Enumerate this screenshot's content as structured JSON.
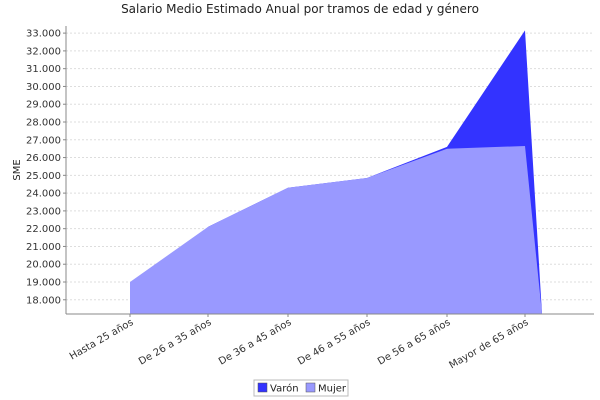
{
  "chart_data": {
    "type": "area",
    "title": "Salario Medio Estimado Anual por tramos de edad y género",
    "xlabel": "",
    "ylabel": "SME",
    "categories": [
      "Hasta 25 años",
      "De 26 a 35 años",
      "De 36 a 45 años",
      "De 46 a 55 años",
      "De 56 a 65 años",
      "Mayor de 65 años"
    ],
    "series": [
      {
        "name": "Varón",
        "color": "#3333ff",
        "values": [
          17200,
          22100,
          24300,
          24850,
          26600,
          33150
        ]
      },
      {
        "name": "Mujer",
        "color": "#9999ff",
        "values": [
          19000,
          22100,
          24300,
          24850,
          26500,
          26650
        ]
      }
    ],
    "ylim": [
      17200,
      33400
    ],
    "yticks": [
      "18.000",
      "19.000",
      "20.000",
      "21.000",
      "22.000",
      "23.000",
      "24.000",
      "25.000",
      "26.000",
      "27.000",
      "28.000",
      "29.000",
      "30.000",
      "31.000",
      "32.000",
      "33.000"
    ],
    "ytick_values": [
      18000,
      19000,
      20000,
      21000,
      22000,
      23000,
      24000,
      25000,
      26000,
      27000,
      28000,
      29000,
      30000,
      31000,
      32000,
      33000
    ],
    "grid": true,
    "legend_position": "bottom-center"
  }
}
